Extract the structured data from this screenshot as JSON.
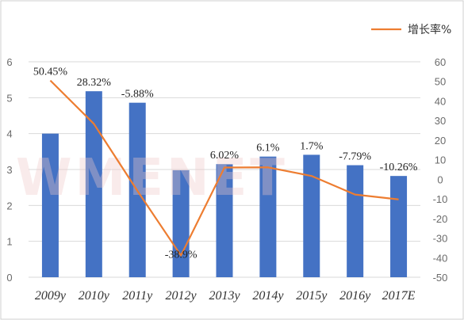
{
  "chart_data": {
    "type": "bar",
    "categories": [
      "2009y",
      "2010y",
      "2011y",
      "2012y",
      "2013y",
      "2014y",
      "2015y",
      "2016y",
      "2017E"
    ],
    "series": [
      {
        "type": "bar",
        "axis": "left",
        "values": [
          4.0,
          5.18,
          4.86,
          2.98,
          3.15,
          3.36,
          3.41,
          3.12,
          2.82
        ],
        "color": "#4472C4"
      },
      {
        "name": "增长率%",
        "type": "line",
        "axis": "right",
        "values": [
          50.45,
          28.32,
          -5.88,
          -38.9,
          6.02,
          6.1,
          1.7,
          -7.79,
          -10.26
        ],
        "labels": [
          "50.45%",
          "28.32%",
          "-5.88%",
          "-38.9%",
          "6.02%",
          "6.1%",
          "1.7%",
          "-7.79%",
          "-10.26%"
        ],
        "color": "#ED7D31"
      }
    ],
    "y_left": {
      "range": [
        0,
        6
      ],
      "ticks": [
        "0",
        "1",
        "2",
        "3",
        "4",
        "5",
        "6"
      ]
    },
    "y_right": {
      "range": [
        -50,
        60
      ],
      "ticks": [
        "-50",
        "-40",
        "-30",
        "-20",
        "-10",
        "0",
        "10",
        "20",
        "30",
        "40",
        "50",
        "60"
      ]
    },
    "legend": {
      "position": "top-right",
      "label": "增长率%"
    },
    "grid": true
  },
  "watermark": "WMENET"
}
